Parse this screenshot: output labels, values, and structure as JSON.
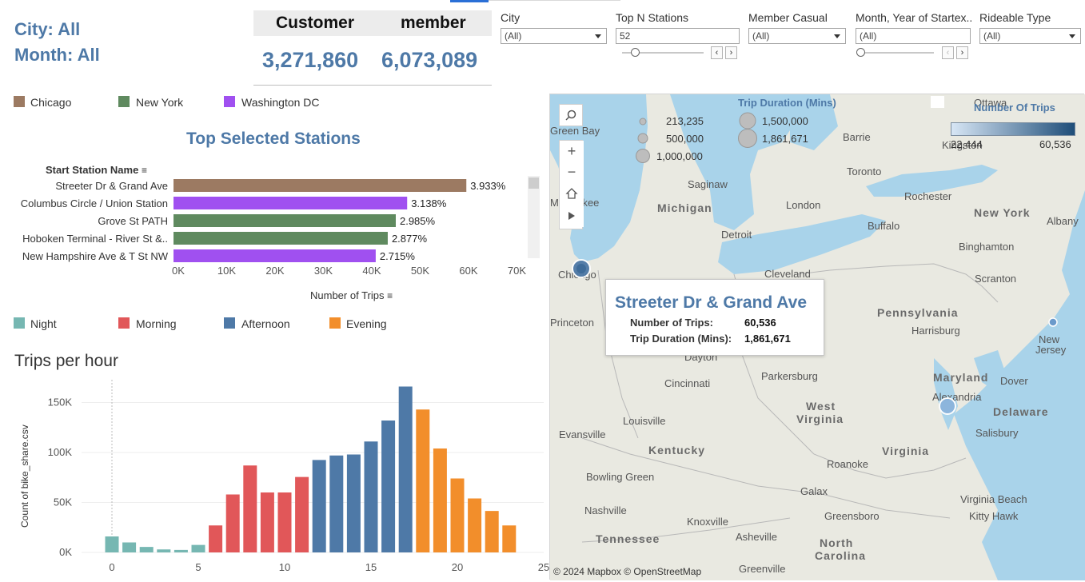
{
  "summary": {
    "city": "City: All",
    "month": "Month: All"
  },
  "kpi": {
    "customer_label": "Customer",
    "member_label": "member",
    "customer_value": "3,271,860",
    "member_value": "6,073,089"
  },
  "filters": {
    "city": {
      "title": "City",
      "value": "(All)"
    },
    "top_n": {
      "title": "Top N Stations",
      "value": "52"
    },
    "member_casual": {
      "title": "Member Casual",
      "value": "(All)"
    },
    "month_year": {
      "title": "Month, Year of Startex..",
      "value": "(All)"
    },
    "rideable": {
      "title": "Rideable Type",
      "value": "(All)"
    }
  },
  "city_legend": [
    {
      "label": "Chicago",
      "color": "#9c7a62"
    },
    {
      "label": "New York",
      "color": "#5f8a5f"
    },
    {
      "label": "Washington DC",
      "color": "#a050f0"
    }
  ],
  "stations_chart": {
    "title": "Top Selected Stations",
    "row_header": "Start Station Name",
    "xlabel": "Number of Trips",
    "colors": {
      "Chicago": "#9c7a62",
      "New York": "#5f8a5f",
      "Washington DC": "#a050f0"
    }
  },
  "period_legend": [
    {
      "label": "Night",
      "color": "#76b7b2"
    },
    {
      "label": "Morning",
      "color": "#e15759"
    },
    {
      "label": "Afternoon",
      "color": "#4e79a7"
    },
    {
      "label": "Evening",
      "color": "#f28e2b"
    }
  ],
  "hour_chart": {
    "title": "Trips per hour",
    "ylabel": "Count of bike_share.csv"
  },
  "chart_data": [
    {
      "type": "bar",
      "orientation": "horizontal",
      "title": "Top Selected Stations",
      "xlabel": "Number of Trips",
      "ylabel": "Start Station Name",
      "xlim": [
        0,
        70000
      ],
      "x_ticks": [
        "0K",
        "10K",
        "20K",
        "30K",
        "40K",
        "50K",
        "60K",
        "70K"
      ],
      "categories": [
        "Streeter Dr & Grand Ave",
        "Columbus Circle / Union Station",
        "Grove St PATH",
        "Hoboken Terminal - River St &..",
        "New Hampshire Ave & T St NW"
      ],
      "city": [
        "Chicago",
        "Washington DC",
        "New York",
        "New York",
        "Washington DC"
      ],
      "values": [
        60536,
        48300,
        45950,
        44290,
        41800
      ],
      "labels": [
        "3.933%",
        "3.138%",
        "2.985%",
        "2.877%",
        "2.715%"
      ]
    },
    {
      "type": "bar",
      "title": "Trips per hour",
      "xlabel": "",
      "ylabel": "Count of bike_share.csv",
      "ylim": [
        0,
        170000
      ],
      "x_ticks": [
        "0",
        "5",
        "10",
        "15",
        "20",
        "25"
      ],
      "y_ticks": [
        "0K",
        "50K",
        "100K",
        "150K"
      ],
      "x": [
        0,
        1,
        2,
        3,
        4,
        5,
        6,
        7,
        8,
        9,
        10,
        11,
        12,
        13,
        14,
        15,
        16,
        17,
        18,
        19,
        20,
        21,
        22,
        23
      ],
      "values": [
        16000,
        10000,
        5500,
        3000,
        2500,
        7500,
        27000,
        58000,
        87000,
        60000,
        60000,
        75500,
        92500,
        97000,
        98000,
        111000,
        132000,
        166000,
        143000,
        104000,
        74000,
        54000,
        41500,
        27000
      ],
      "period": [
        "Night",
        "Night",
        "Night",
        "Night",
        "Night",
        "Night",
        "Morning",
        "Morning",
        "Morning",
        "Morning",
        "Morning",
        "Morning",
        "Afternoon",
        "Afternoon",
        "Afternoon",
        "Afternoon",
        "Afternoon",
        "Afternoon",
        "Evening",
        "Evening",
        "Evening",
        "Evening",
        "Evening",
        "Evening"
      ]
    }
  ],
  "map": {
    "size_legend_title": "Trip Duration (Mins)",
    "size_items": [
      "213,235",
      "500,000",
      "1,000,000",
      "1,500,000",
      "1,861,671"
    ],
    "color_legend_title": "Number Of Trips",
    "color_min": "22,444",
    "color_max": "60,536",
    "places": [
      "Green Bay",
      "Saginaw",
      "Michigan",
      "Milwaukee",
      "Detroit",
      "London",
      "Toronto",
      "Barrie",
      "Kingston",
      "Ottawa",
      "Rochester",
      "Buffalo",
      "New York",
      "Albany",
      "Binghamton",
      "Scranton",
      "Chicago",
      "Cleveland",
      "Pennsylvania",
      "Harrisburg",
      "Dayton",
      "Cincinnati",
      "Parkersburg",
      "West Virginia",
      "Maryland",
      "Dover",
      "Alexandria",
      "Delaware",
      "Salisbury",
      "Louisville",
      "Evansville",
      "Kentucky",
      "Virginia",
      "Roanoke",
      "Bowling Green",
      "Galax",
      "Virginia Beach",
      "Nashville",
      "Knoxville",
      "Greensboro",
      "Kitty Hawk",
      "Tennessee",
      "Asheville",
      "North Carolina",
      "Greenville",
      "New Jersey",
      "Princeton"
    ],
    "attribution": "© 2024 Mapbox  © OpenStreetMap"
  },
  "tooltip": {
    "station": "Streeter Dr & Grand Ave",
    "trips_label": "Number of Trips:",
    "trips_value": "60,536",
    "duration_label": "Trip Duration (Mins):",
    "duration_value": "1,861,671"
  }
}
